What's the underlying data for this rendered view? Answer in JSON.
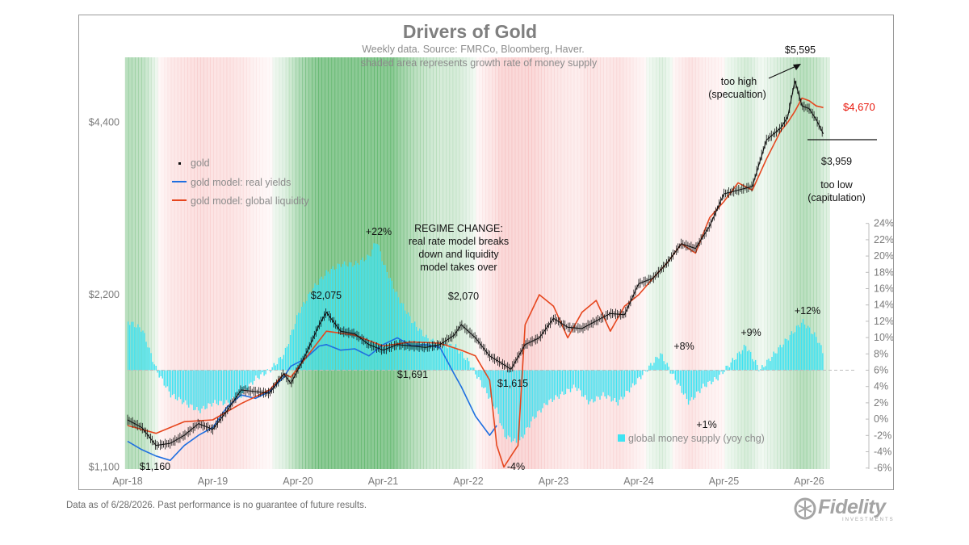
{
  "title": "Drivers of Gold",
  "subtitle_1": "Weekly data.  Source: FMRCo, Bloomberg, Haver.",
  "subtitle_2": "shaded area represents growth rate of money supply",
  "footnote": "Data as of 6/28/2026. Past performance is no guarantee of future results.",
  "logo": {
    "name": "Fidelity",
    "sub": "INVESTMENTS"
  },
  "chart_data": {
    "type": "line",
    "x_axis": {
      "ticks": [
        "Apr-18",
        "Apr-19",
        "Apr-20",
        "Apr-21",
        "Apr-22",
        "Apr-23",
        "Apr-24",
        "Apr-25",
        "Apr-26"
      ],
      "range": [
        "2018-04",
        "2026-07"
      ]
    },
    "y_left": {
      "ticks": [
        "$1,100",
        "$2,200",
        "$4,400"
      ],
      "scale": "log",
      "range": [
        1100,
        6200
      ]
    },
    "y_right": {
      "ticks": [
        "24%",
        "22%",
        "20%",
        "18%",
        "16%",
        "14%",
        "12%",
        "10%",
        "8%",
        "6%",
        "4%",
        "2%",
        "0%",
        "-2%",
        "-4%",
        "-6%"
      ],
      "range": [
        -6,
        24
      ],
      "reference_line": 6
    },
    "legend": [
      "gold",
      "gold model: real yields",
      "gold model: global liquidity",
      "global money supply (yoy chg)"
    ],
    "colors": {
      "gold": "#111111",
      "real_yields": "#1f6fe0",
      "global_liquidity": "#e6461e",
      "money_supply": "#3fe3f2",
      "too_high_red": "#e8180c"
    },
    "series": [
      {
        "name": "gold",
        "x": [
          "2018-04",
          "2018-06",
          "2018-08",
          "2018-10",
          "2018-12",
          "2019-02",
          "2019-04",
          "2019-06",
          "2019-08",
          "2019-10",
          "2019-12",
          "2020-02",
          "2020-03",
          "2020-05",
          "2020-07",
          "2020-08",
          "2020-10",
          "2020-12",
          "2021-02",
          "2021-04",
          "2021-06",
          "2021-08",
          "2021-10",
          "2021-12",
          "2022-02",
          "2022-03",
          "2022-05",
          "2022-07",
          "2022-09",
          "2022-10",
          "2022-12",
          "2023-02",
          "2023-04",
          "2023-06",
          "2023-08",
          "2023-10",
          "2023-12",
          "2024-02",
          "2024-04",
          "2024-06",
          "2024-08",
          "2024-10",
          "2024-12",
          "2025-02",
          "2025-04",
          "2025-06",
          "2025-08",
          "2025-10",
          "2025-12",
          "2026-01",
          "2026-02",
          "2026-03",
          "2026-04",
          "2026-05",
          "2026-06"
        ],
        "values": [
          1330,
          1290,
          1200,
          1210,
          1250,
          1310,
          1280,
          1380,
          1500,
          1490,
          1480,
          1600,
          1540,
          1720,
          1950,
          2050,
          1900,
          1880,
          1800,
          1760,
          1800,
          1790,
          1780,
          1800,
          1870,
          1950,
          1850,
          1720,
          1660,
          1630,
          1800,
          1850,
          2000,
          1930,
          1920,
          1980,
          2040,
          2030,
          2300,
          2350,
          2500,
          2700,
          2650,
          2900,
          3300,
          3350,
          3400,
          4100,
          4300,
          4500,
          5200,
          4700,
          4650,
          4450,
          4200
        ]
      },
      {
        "name": "gold model: real yields",
        "x": [
          "2018-04",
          "2018-06",
          "2018-08",
          "2018-10",
          "2018-12",
          "2019-02",
          "2019-04",
          "2019-06",
          "2019-08",
          "2019-10",
          "2019-12",
          "2020-02",
          "2020-03",
          "2020-05",
          "2020-07",
          "2020-08",
          "2020-10",
          "2020-12",
          "2021-02",
          "2021-04",
          "2021-06",
          "2021-08",
          "2021-10",
          "2021-12",
          "2022-02",
          "2022-03",
          "2022-05",
          "2022-07",
          "2022-08"
        ],
        "values": [
          1220,
          1180,
          1150,
          1130,
          1200,
          1250,
          1290,
          1400,
          1470,
          1450,
          1490,
          1580,
          1650,
          1700,
          1790,
          1800,
          1760,
          1770,
          1720,
          1800,
          1850,
          1790,
          1800,
          1780,
          1600,
          1520,
          1350,
          1250,
          1300
        ]
      },
      {
        "name": "gold model: global liquidity",
        "x": [
          "2018-04",
          "2018-08",
          "2018-12",
          "2019-04",
          "2019-08",
          "2019-12",
          "2020-02",
          "2020-03",
          "2020-05",
          "2020-08",
          "2020-12",
          "2021-04",
          "2021-08",
          "2021-12",
          "2022-03",
          "2022-05",
          "2022-07",
          "2022-08",
          "2022-09",
          "2022-10",
          "2022-11",
          "2022-12",
          "2023-02",
          "2023-04",
          "2023-06",
          "2023-08",
          "2023-10",
          "2023-12",
          "2024-02",
          "2024-04",
          "2024-06",
          "2024-08",
          "2024-10",
          "2024-12",
          "2025-02",
          "2025-04",
          "2025-06",
          "2025-08",
          "2025-10",
          "2025-12",
          "2026-01",
          "2026-02",
          "2026-03",
          "2026-04",
          "2026-05",
          "2026-06"
        ],
        "values": [
          1300,
          1260,
          1320,
          1330,
          1420,
          1500,
          1600,
          1580,
          1700,
          1900,
          1870,
          1790,
          1820,
          1810,
          1760,
          1720,
          1560,
          1200,
          1100,
          1150,
          1200,
          1950,
          2200,
          2100,
          1850,
          2050,
          2150,
          1900,
          2100,
          2200,
          2350,
          2500,
          2700,
          2600,
          3000,
          3200,
          3450,
          3350,
          3800,
          4250,
          4400,
          4600,
          4850,
          4800,
          4700,
          4670
        ]
      },
      {
        "name": "global money supply (yoy chg)",
        "axis": "right",
        "x": [
          "2018-04",
          "2018-06",
          "2018-08",
          "2018-10",
          "2018-12",
          "2019-02",
          "2019-04",
          "2019-06",
          "2019-08",
          "2019-10",
          "2019-12",
          "2020-02",
          "2020-04",
          "2020-06",
          "2020-08",
          "2020-10",
          "2020-12",
          "2021-02",
          "2021-03",
          "2021-04",
          "2021-06",
          "2021-08",
          "2021-10",
          "2021-12",
          "2022-02",
          "2022-04",
          "2022-06",
          "2022-08",
          "2022-09",
          "2022-11",
          "2023-01",
          "2023-03",
          "2023-05",
          "2023-07",
          "2023-09",
          "2023-11",
          "2024-01",
          "2024-03",
          "2024-05",
          "2024-07",
          "2024-09",
          "2024-11",
          "2025-01",
          "2025-03",
          "2025-05",
          "2025-07",
          "2025-09",
          "2025-11",
          "2026-01",
          "2026-03",
          "2026-05",
          "2026-06"
        ],
        "values": [
          12,
          11,
          6,
          3,
          2,
          1,
          2,
          2,
          3,
          5,
          6,
          8,
          13,
          16,
          18,
          19,
          19,
          20,
          22,
          19,
          15,
          12,
          10,
          9,
          9,
          7,
          4,
          1,
          -2,
          -3,
          0,
          2,
          3,
          4,
          2,
          3,
          2,
          4,
          6,
          8,
          5,
          2,
          4,
          5,
          7,
          9,
          6,
          8,
          10,
          12,
          10,
          8
        ]
      }
    ],
    "annotations": {
      "too_high_value": "$5,595",
      "too_high_text_1": "too high",
      "too_high_text_2": "(specualtion)",
      "latest_model_value": "$4,670",
      "low_value": "$3,959",
      "too_low_text_1": "too low",
      "too_low_text_2": "(capitulation)",
      "regime_1": "REGIME CHANGE:",
      "regime_2": "real rate model breaks",
      "regime_3": "down and liquidity",
      "regime_4": "model takes over",
      "gold_2018_low": "$1,160",
      "gold_2020_high": "$2,075",
      "gold_2021_low": "$1,691",
      "gold_2022_high": "$2,070",
      "gold_2022_low": "$1,615",
      "ms_peak_2021": "+22%",
      "ms_low_2022": "-4%",
      "ms_2024_a": "+8%",
      "ms_2024_b": "+1%",
      "ms_2025": "+9%",
      "ms_2026": "+12%"
    }
  }
}
